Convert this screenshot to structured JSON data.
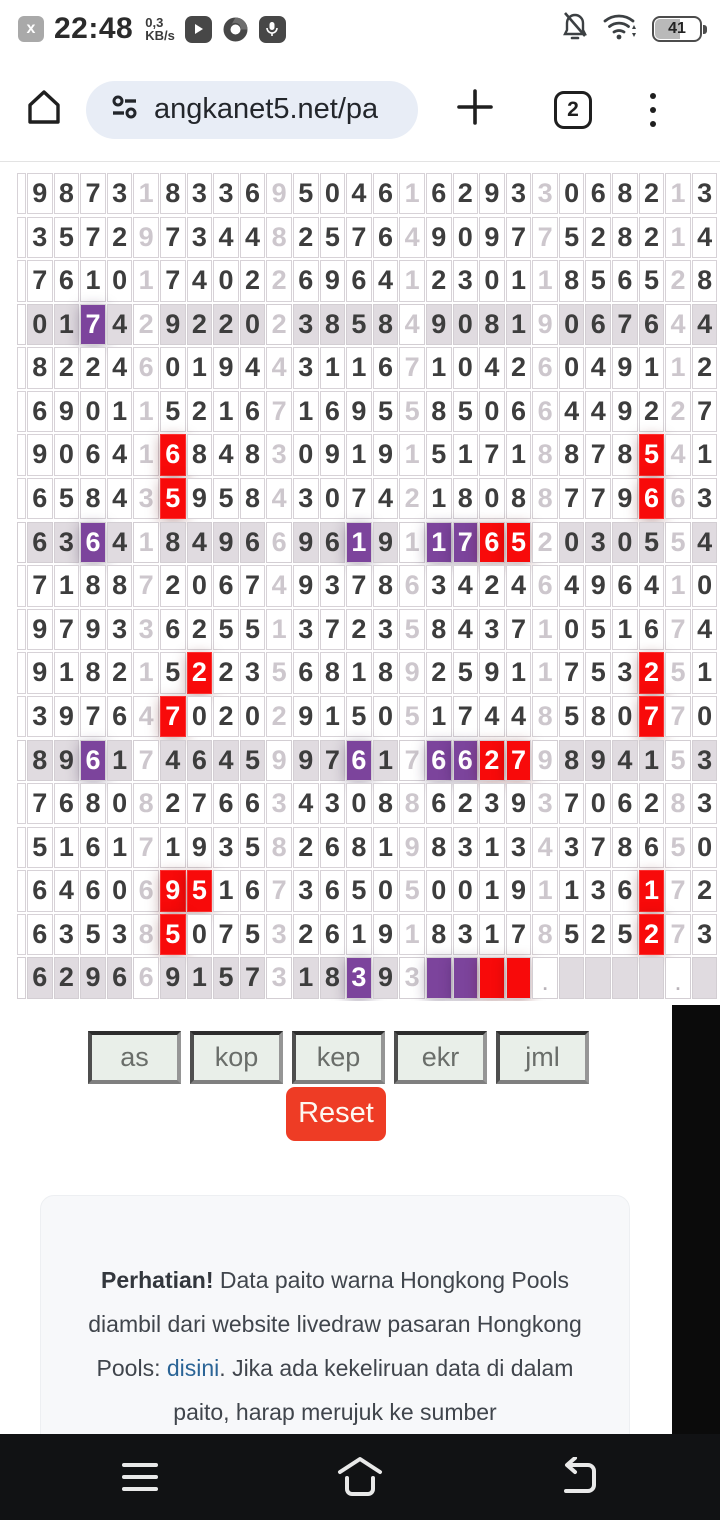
{
  "status_bar": {
    "app_badge": "x",
    "time": "22:48",
    "net_speed_value": "0,3",
    "net_speed_unit": "KB/s",
    "battery_percent": "41"
  },
  "browser": {
    "url": "angkanet5.net/pa",
    "tab_count": "2"
  },
  "grid": {
    "shaded_rows": [
      3,
      8,
      13,
      18
    ],
    "legend": "tokens: digit = black cell, position 5/10/15/20/25 = light separator digit, suffix p = purple highlight, suffix r = red highlight, . = dot placeholder, _ = empty cell",
    "rows": [
      "9 8 7 3 1 8 3 3 6 9 5 0 4 6 1 6 2 9 3 3 0 6 8 2 1 3",
      "3 5 7 2 9 7 3 4 4 8 2 5 7 6 4 9 0 9 7 7 5 2 8 2 1 4",
      "7 6 1 0 1 7 4 0 2 2 6 9 6 4 1 2 3 0 1 1 8 5 6 5 2 8",
      "0 1 7p 4 2 9 2 2 0 2 3 8 5 8 4 9 0 8 1 9 0 6 7 6 4 4",
      "8 2 2 4 6 0 1 9 4 4 3 1 1 6 7 1 0 4 2 6 0 4 9 1 1 2",
      "6 9 0 1 1 5 2 1 6 7 1 6 9 5 5 8 5 0 6 6 4 4 9 2 2 7",
      "9 0 6 4 1 6r 8 4 8 3 0 9 1 9 1 5 1 7 1 8 8 7 8 5r 4 1",
      "6 5 8 4 3 5r 9 5 8 4 3 0 7 4 2 1 8 0 8 8 7 7 9 6r 6 3",
      "6 3 6p 4 1 8 4 9 6 6 9 6 1p 9 1 1p 7p 6r 5r 2 0 3 0 5 5 4",
      "7 1 8 8 7 2 0 6 7 4 9 3 7 8 6 3 4 2 4 6 4 9 6 4 1 0",
      "9 7 9 3 3 6 2 5 5 1 3 7 2 3 5 8 4 3 7 1 0 5 1 6 7 4",
      "9 1 8 2 1 5 2r 2 3 5 6 8 1 8 9 2 5 9 1 1 7 5 3 2r 5 1",
      "3 9 7 6 4 7r 0 2 0 2 9 1 5 0 5 1 7 4 4 8 5 8 0 7r 7 0",
      "8 9 6p 1 7 4 6 4 5 9 9 7 6p 1 7 6p 6p 2r 7r 9 8 9 4 1 5 3",
      "7 6 8 0 8 2 7 6 6 3 4 3 0 8 8 6 2 3 9 3 7 0 6 2 8 3",
      "5 1 6 1 7 1 9 3 5 8 2 6 8 1 9 8 3 1 3 4 3 7 8 6 5 0",
      "6 4 6 0 6 9r 5r 1 6 7 3 6 5 0 5 0 0 1 9 1 1 3 6 1r 7 2",
      "6 3 5 3 8 5r 0 7 5 3 2 6 1 9 1 8 3 1 7 8 5 2 5 2r 7 3",
      "6 2 9 6 6 9 1 5 7 3 1 8 3p 9 3 _p _p _r _r . _ _ _ _ . _"
    ]
  },
  "controls": {
    "buttons": [
      "as",
      "kop",
      "kep",
      "ekr",
      "jml"
    ],
    "reset_label": "Reset"
  },
  "notice": {
    "bold": "Perhatian!",
    "text1": " Data paito warna Hongkong Pools diambil dari website livedraw pasaran Hongkong Pools: ",
    "link": "disini",
    "text2": ". Jika ada kekeliruan data di dalam paito, harap merujuk ke sumber"
  },
  "colors": {
    "highlight_purple": "#7c449c",
    "highlight_red": "#f80a0a",
    "shaded_row": "#e0dbe0",
    "reset_button": "#ee3c25",
    "link_blue": "#2a6496",
    "url_pill": "#e8edf6",
    "nav_bar": "#111214"
  }
}
